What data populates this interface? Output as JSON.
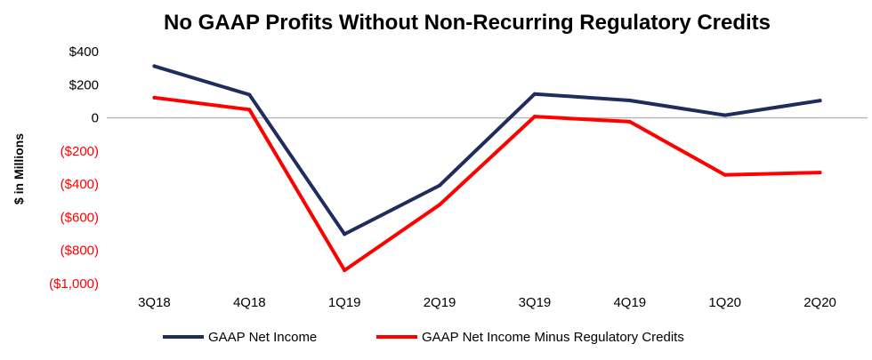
{
  "chart_data": {
    "type": "line",
    "title": "No GAAP Profits Without Non-Recurring Regulatory Credits",
    "ylabel": "$ in Millions",
    "xlabel": "",
    "categories": [
      "3Q18",
      "4Q18",
      "1Q19",
      "2Q19",
      "3Q19",
      "4Q19",
      "1Q20",
      "2Q20"
    ],
    "ylim": [
      -1000,
      400
    ],
    "yticks": [
      400,
      200,
      0,
      -200,
      -400,
      -600,
      -800,
      -1000
    ],
    "ytick_labels": [
      "$400",
      "$200",
      "0",
      "($200)",
      "($400)",
      "($600)",
      "($800)",
      "($1,000)"
    ],
    "negative_tick_color": "#ff0000",
    "positive_tick_color": "#000000",
    "zero_line": true,
    "grid": false,
    "legend_position": "bottom",
    "series": [
      {
        "name": "GAAP Net Income",
        "color": "#1f2d5c",
        "values": [
          312,
          140,
          -702,
          -408,
          144,
          105,
          16,
          104
        ]
      },
      {
        "name": "GAAP Net Income Minus Regulatory Credits",
        "color": "#ff0000",
        "values": [
          122,
          50,
          -920,
          -524,
          8,
          -23,
          -344,
          -330
        ]
      }
    ]
  }
}
